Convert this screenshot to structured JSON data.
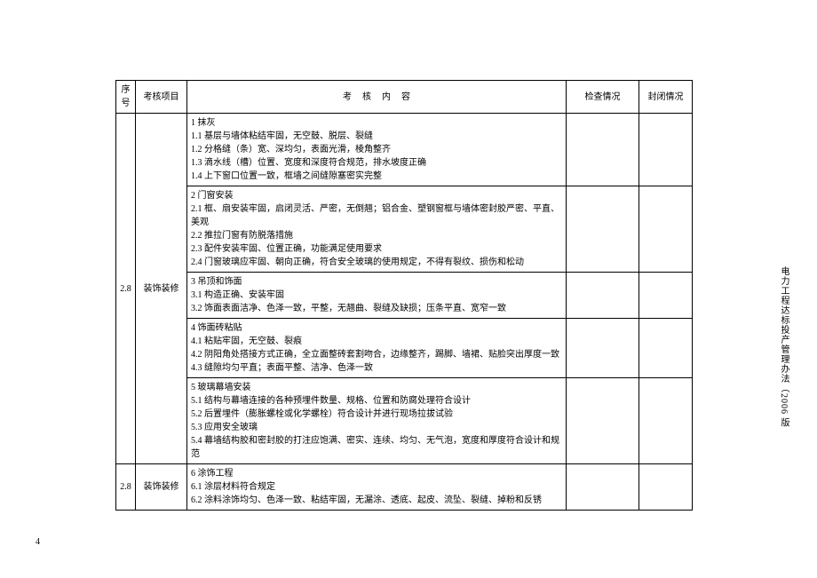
{
  "header": {
    "seq": "序号",
    "item": "考核项目",
    "content": "考核内容",
    "check": "检查情况",
    "seal": "封闭情况"
  },
  "rows": [
    {
      "seq": "2.8",
      "item": "装饰装修",
      "cells": [
        "1   抹灰\n1.1   基层与墙体粘结牢固，无空鼓、脱层、裂缝\n1.2   分格缝（条）宽、深均匀，表面光滑，棱角整齐\n1.3   滴水线（槽）位置、宽度和深度符合规范，排水坡度正确\n1.4   上下窗口位置一致，框墙之间缝隙塞密实完整",
        "2   门窗安装\n2.1   框、扇安装牢固，启闭灵活、严密，无倒翘；铝合金、塑钢窗框与墙体密封胶严密、平直、美观\n2.2   推拉门窗有防脱落措施\n2.3   配件安装牢固、位置正确，功能满足使用要求\n2.4   门窗玻璃应牢固、朝向正确，符合安全玻璃的使用规定，不得有裂纹、损伤和松动",
        "3   吊顶和饰面\n3.1   构造正确、安装牢固\n3.2   饰面表面洁净、色泽一致，平整，无翘曲、裂缝及缺损；压条平直、宽窄一致",
        "4   饰面砖粘贴\n4.1   粘贴牢固，无空鼓、裂痕\n4.2   阴阳角处搭接方式正确，全立面整砖套割吻合，边缘整齐，踢脚、墙裙、贴脸突出厚度一致\n4.3   缝隙均匀平直；表面平整、洁净、色泽一致",
        "5   玻璃幕墙安装\n5.1   结构与幕墙连接的各种预埋件数量、规格、位置和防腐处理符合设计\n5.2   后置埋件（膨胀螺栓或化学螺栓）符合设计并进行现场拉拔试验\n5.3   应用安全玻璃\n5.4   幕墙结构胶和密封胶的打注应饱满、密实、连续、均匀、无气泡，宽度和厚度符合设计和规范"
      ]
    },
    {
      "seq": "2.8",
      "item": "装饰装修",
      "cells": [
        "6   涂饰工程\n6.1   涂层材料符合规定\n6.2   涂料涂饰均匀、色泽一致、粘结牢固，无漏涂、透底、起皮、流坠、裂缝、掉粉和反锈"
      ]
    }
  ],
  "sideTitle": "电力工程达标投产管理办法（2006 版",
  "pageNumber": "4",
  "style": {
    "font_family": "SimSun",
    "base_fontsize": 10,
    "border_color": "#000000",
    "text_color": "#000000",
    "background_color": "#ffffff"
  }
}
